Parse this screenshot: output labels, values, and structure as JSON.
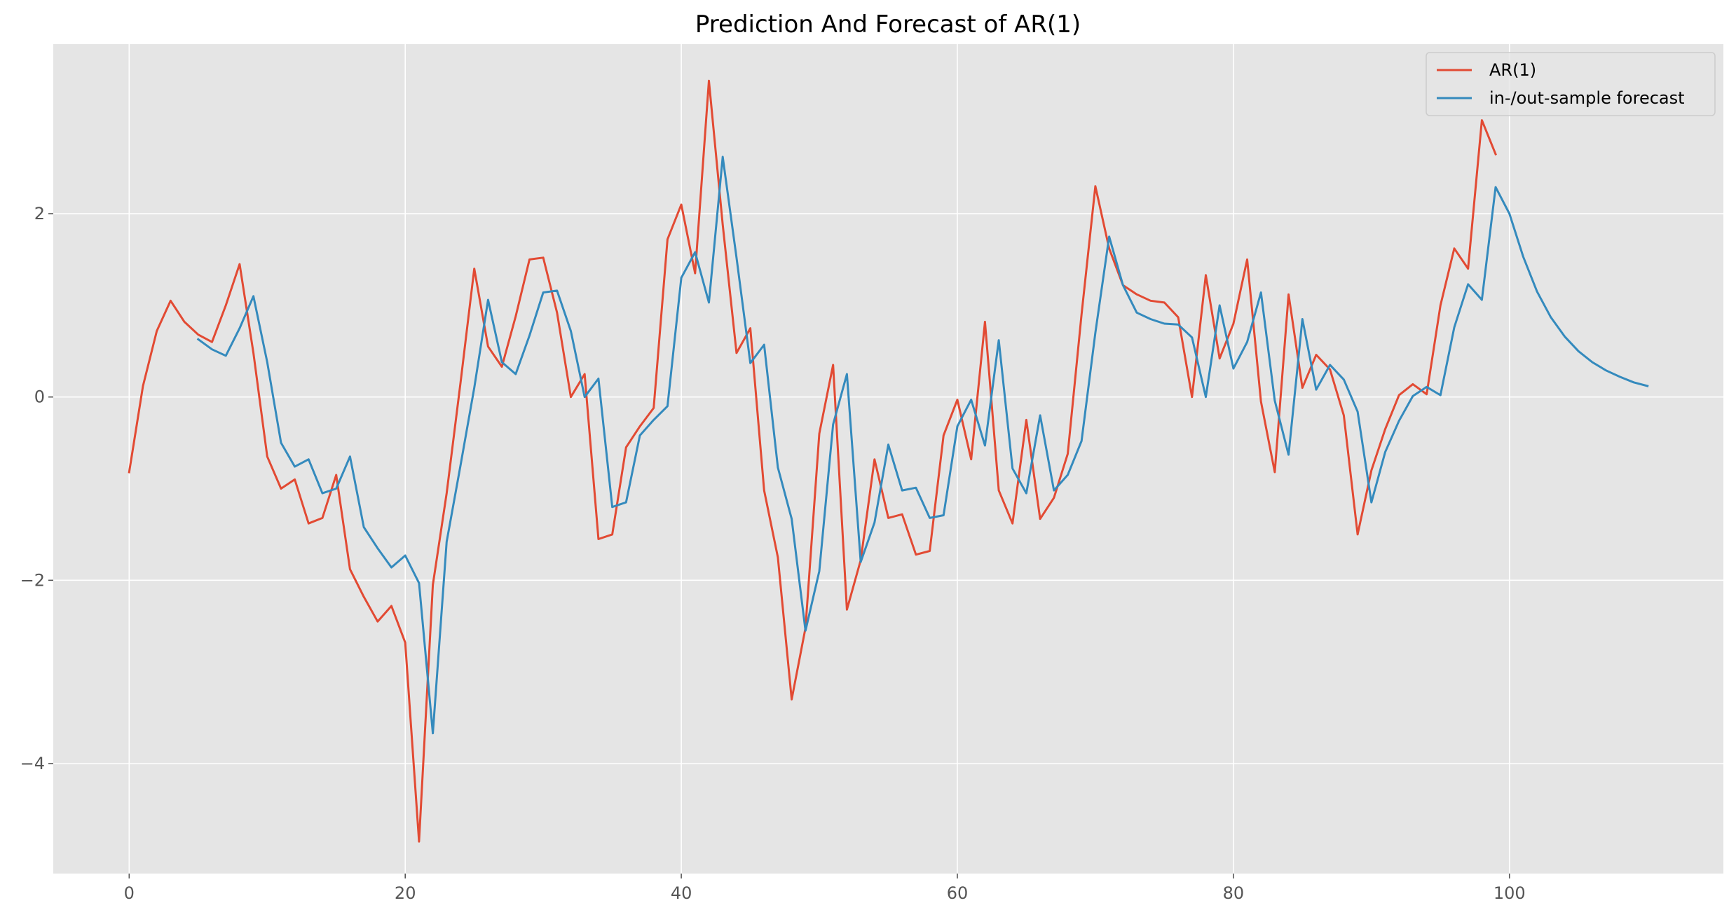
{
  "chart_data": {
    "type": "line",
    "title": "Prediction And Forecast of AR(1)",
    "xlabel": "",
    "ylabel": "",
    "xlim": [
      -5.5,
      115.5
    ],
    "ylim": [
      -5.2,
      3.85
    ],
    "x_ticks": [
      0,
      20,
      40,
      60,
      80,
      100
    ],
    "x_tick_labels": [
      "0",
      "20",
      "40",
      "60",
      "80",
      "100"
    ],
    "y_ticks": [
      -4,
      -2,
      0,
      2
    ],
    "y_tick_labels": [
      "−4",
      "−2",
      "0",
      "2"
    ],
    "grid": true,
    "legend_position": "top-right",
    "colors": {
      "background": "#e5e5e5",
      "grid": "#ffffff",
      "tick": "#555555"
    },
    "series": [
      {
        "name": "AR(1)",
        "color": "#e24a33",
        "x_start": 0,
        "values": [
          -0.82,
          0.12,
          0.72,
          1.05,
          0.82,
          0.68,
          0.6,
          1.0,
          1.45,
          0.48,
          -0.65,
          -1.0,
          -0.9,
          -1.38,
          -1.32,
          -0.85,
          -1.88,
          -2.18,
          -2.45,
          -2.28,
          -2.68,
          -4.85,
          -2.05,
          -1.05,
          0.15,
          1.4,
          0.55,
          0.33,
          0.88,
          1.5,
          1.52,
          0.92,
          0.0,
          0.25,
          -1.55,
          -1.5,
          -0.55,
          -0.32,
          -0.12,
          1.72,
          2.1,
          1.35,
          3.45,
          1.88,
          0.48,
          0.75,
          -1.02,
          -1.75,
          -3.3,
          -2.52,
          -0.4,
          0.35,
          -2.32,
          -1.78,
          -0.68,
          -1.32,
          -1.28,
          -1.72,
          -1.68,
          -0.42,
          -0.03,
          -0.68,
          0.82,
          -1.02,
          -1.38,
          -0.25,
          -1.33,
          -1.1,
          -0.62,
          0.9,
          2.3,
          1.62,
          1.22,
          1.12,
          1.05,
          1.03,
          0.87,
          0.0,
          1.33,
          0.42,
          0.8,
          1.5,
          -0.05,
          -0.82,
          1.12,
          0.1,
          0.46,
          0.3,
          -0.2,
          -1.5,
          -0.8,
          -0.35,
          0.02,
          0.14,
          0.03,
          1.0,
          1.62,
          1.4,
          3.02,
          2.65
        ]
      },
      {
        "name": "in-/out-sample forecast",
        "color": "#348abd",
        "x_start": 5,
        "values": [
          0.63,
          0.52,
          0.45,
          0.75,
          1.1,
          0.38,
          -0.5,
          -0.76,
          -0.68,
          -1.05,
          -1.0,
          -0.65,
          -1.42,
          -1.65,
          -1.86,
          -1.73,
          -2.03,
          -3.67,
          -1.58,
          -0.75,
          0.1,
          1.06,
          0.38,
          0.25,
          0.67,
          1.14,
          1.16,
          0.72,
          0.0,
          0.2,
          -1.2,
          -1.15,
          -0.42,
          -0.25,
          -0.1,
          1.3,
          1.58,
          1.03,
          2.62,
          1.52,
          0.37,
          0.57,
          -0.77,
          -1.33,
          -2.55,
          -1.9,
          -0.3,
          0.25,
          -1.8,
          -1.37,
          -0.52,
          -1.02,
          -0.99,
          -1.32,
          -1.29,
          -0.32,
          -0.03,
          -0.53,
          0.62,
          -0.78,
          -1.05,
          -0.2,
          -1.02,
          -0.85,
          -0.48,
          0.7,
          1.75,
          1.22,
          0.92,
          0.85,
          0.8,
          0.79,
          0.65,
          0.0,
          1.0,
          0.31,
          0.6,
          1.14,
          -0.04,
          -0.63,
          0.85,
          0.08,
          0.35,
          0.19,
          -0.16,
          -1.15,
          -0.6,
          -0.26,
          0.01,
          0.11,
          0.02,
          0.76,
          1.23,
          1.06,
          2.29,
          2.0,
          1.53,
          1.15,
          0.87,
          0.66,
          0.5,
          0.38,
          0.29,
          0.22,
          0.16,
          0.12
        ]
      }
    ]
  }
}
